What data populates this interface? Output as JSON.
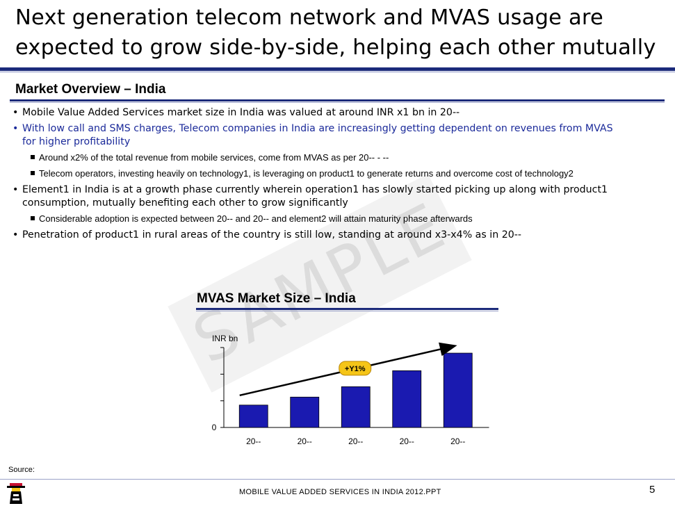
{
  "slide": {
    "title_line1": "Next generation telecom network and MVAS usage are",
    "title_line2": "expected to grow side-by-side, helping each other mutually",
    "section_heading": "Market Overview – India"
  },
  "bullets": {
    "b1": "Mobile Value Added Services market size in India was valued at around INR x1 bn in 20--",
    "b2_line1": "With low call and SMS charges, Telecom companies in India are increasingly getting dependent on revenues from MVAS",
    "b2_line2": "for higher profitability",
    "b2_sub1": "Around x2% of the total revenue from mobile services, come from MVAS as per 20-- - --",
    "b2_sub2": "Telecom operators, investing heavily on technology1, is leveraging on product1 to generate returns and overcome cost of technology2",
    "b3_line1": "Element1 in India is at a growth phase currently wherein operation1 has slowly started picking up along with product1",
    "b3_line2": "consumption, mutually benefiting each other to grow significantly",
    "b3_sub1": "Considerable adoption is expected between 20-- and 20-- and element2 will attain maturity phase afterwards",
    "b4": "Penetration of product1 in rural areas of the country is still low, standing at around x3-x4% as in 20--",
    "bullet_char": "•"
  },
  "watermark": {
    "text": "SAMPLE"
  },
  "chart_data": {
    "type": "bar",
    "title": "MVAS Market Size – India",
    "ylabel": "INR bn",
    "xlabel": "",
    "categories": [
      "20--",
      "20--",
      "20--",
      "20--",
      "20--"
    ],
    "values": [
      28,
      38,
      51,
      71,
      93
    ],
    "ylim": [
      0,
      100
    ],
    "y_tick_labels": [
      "0"
    ],
    "annotation": "+Y1%",
    "bar_color": "#1a1ab0",
    "annotation_fill": "#f5c518",
    "annotation_stroke": "#b8860b"
  },
  "footer": {
    "source_label": "Source:",
    "document_name": "MOBILE VALUE ADDED SERVICES IN INDIA 2012.PPT",
    "page_number": "5"
  },
  "icons": {
    "logo": "lighthouse-logo-icon"
  }
}
